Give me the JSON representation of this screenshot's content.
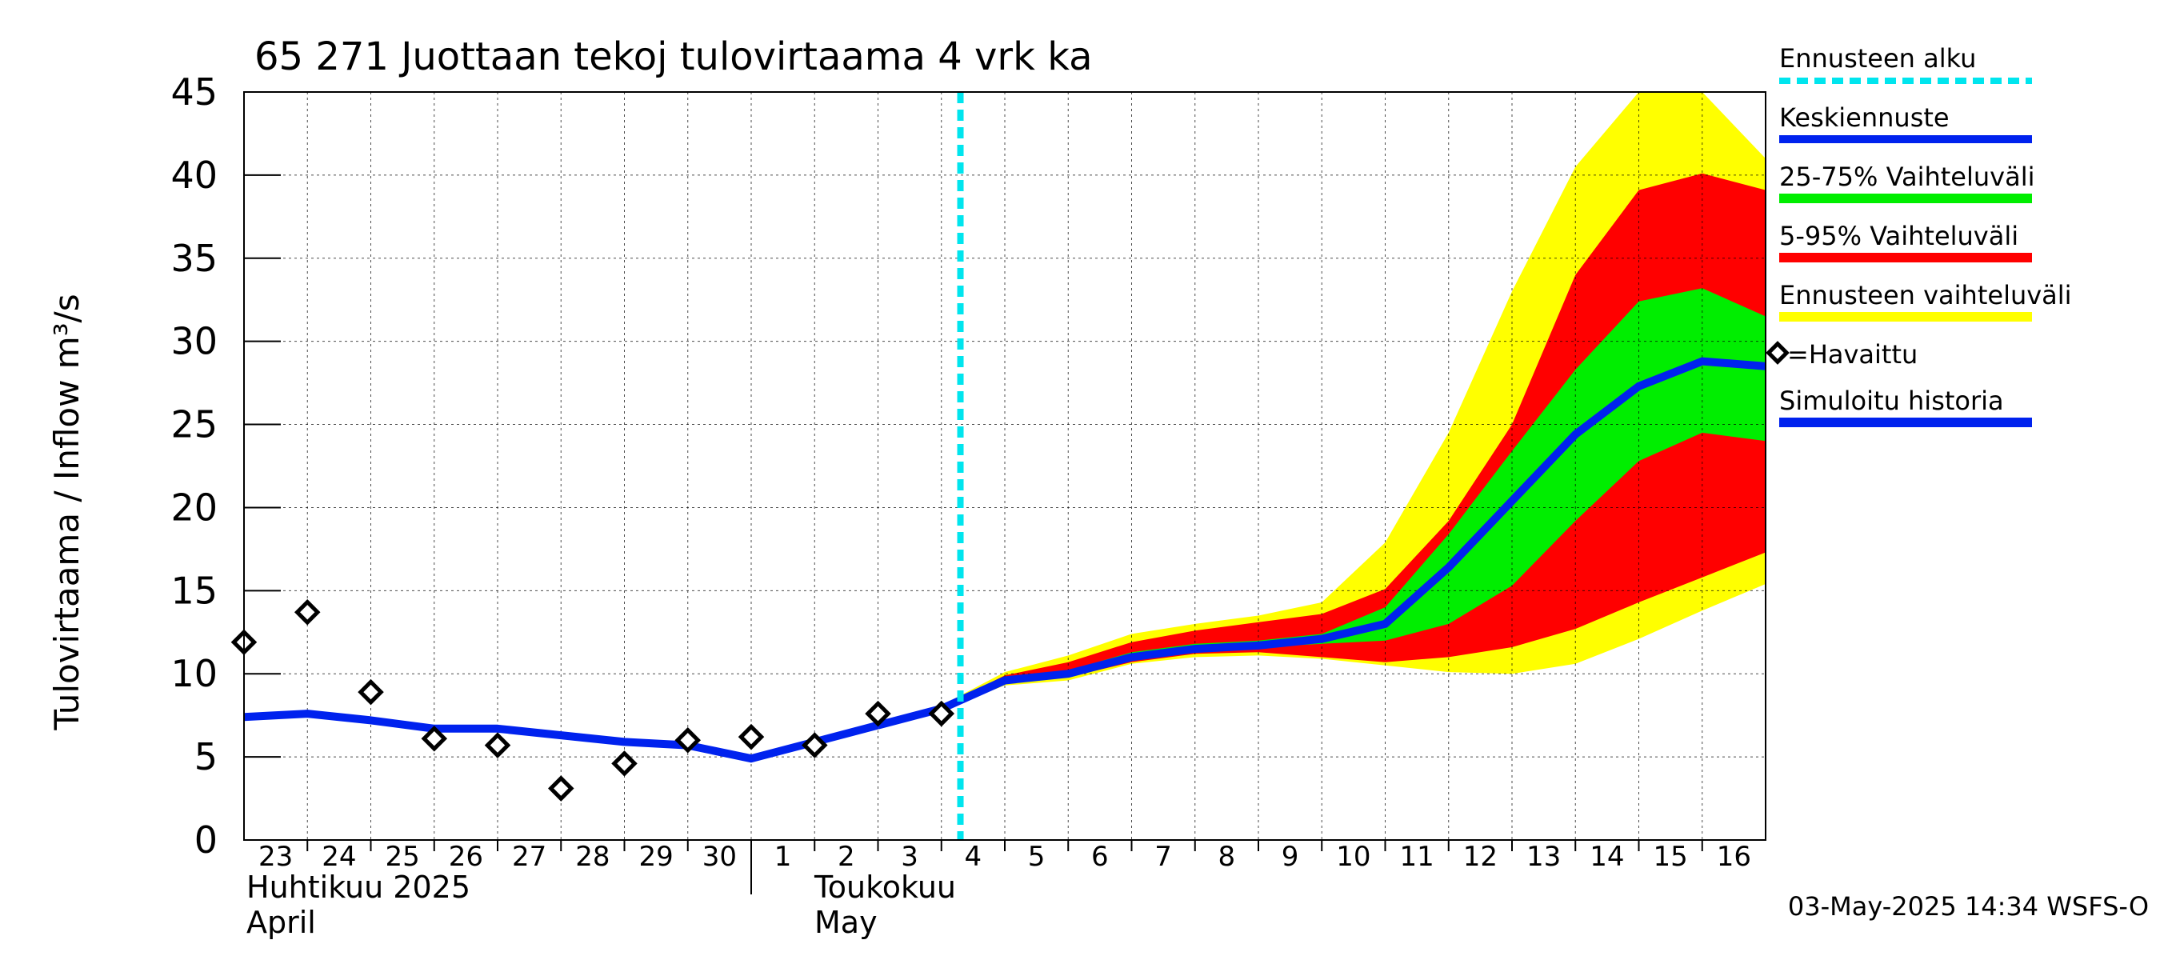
{
  "chart_data": {
    "type": "area",
    "title": "65 271 Juottaan tekoj tulovirtaama 4 vrk ka",
    "ylabel": "Tulovirtaama / Inflow    m³/s",
    "ylim": [
      0,
      45
    ],
    "y_ticks": [
      "0",
      "5",
      "10",
      "15",
      "20",
      "25",
      "30",
      "35",
      "40",
      "45"
    ],
    "grid": true,
    "days": [
      "23",
      "24",
      "25",
      "26",
      "27",
      "28",
      "29",
      "30",
      "1",
      "2",
      "3",
      "4",
      "5",
      "6",
      "7",
      "8",
      "9",
      "10",
      "11",
      "12",
      "13",
      "14",
      "15",
      "16"
    ],
    "month_labels": {
      "april_fi": "Huhtikuu  2025",
      "april_en": "April",
      "may_fi": "Toukokuu",
      "may_en": "May"
    },
    "forecast_start_day": 10.8,
    "x_range": [
      -0.5,
      23.5
    ],
    "legend": {
      "forecast_start": "Ennusteen alku",
      "median": "Keskiennuste",
      "band_25_75": "25-75% Vaihteluväli",
      "band_5_95": "5-95% Vaihteluväli",
      "band_full": "Ennusteen vaihteluväli",
      "observed": "=Havaittu",
      "simulated": "Simuloitu historia"
    },
    "observed": {
      "x": [
        -0.5,
        0.5,
        1.5,
        2.5,
        3.5,
        4.5,
        5.5,
        6.5,
        7.5,
        8.5,
        9.5,
        10.5
      ],
      "y": [
        11.9,
        13.7,
        8.9,
        6.1,
        5.7,
        3.1,
        4.6,
        6.0,
        6.2,
        5.7,
        7.6,
        7.6
      ]
    },
    "simulated_history": {
      "x": [
        -0.5,
        0.5,
        1.5,
        2.5,
        3.5,
        4.5,
        5.5,
        6.5,
        7.5,
        8.5,
        9.5
      ],
      "y": [
        7.4,
        7.6,
        7.2,
        6.7,
        6.7,
        6.3,
        5.9,
        5.7,
        4.9,
        5.9,
        6.9
      ]
    },
    "forecast": {
      "x": [
        9.5,
        10.5,
        11.5,
        12.5,
        13.5,
        14.5,
        15.5,
        16.5,
        17.5,
        18.5,
        19.5,
        20.5,
        21.5,
        22.5,
        23.5
      ],
      "median": [
        6.9,
        7.9,
        9.6,
        10.0,
        11.0,
        11.5,
        11.7,
        12.1,
        13.0,
        16.4,
        20.4,
        24.4,
        27.3,
        28.8,
        28.5
      ],
      "p25": [
        6.9,
        7.9,
        9.5,
        9.9,
        10.9,
        11.4,
        11.6,
        11.8,
        12.0,
        13.0,
        15.3,
        19.2,
        22.8,
        24.5,
        24.0
      ],
      "p75": [
        6.9,
        7.9,
        9.7,
        10.2,
        11.3,
        11.8,
        12.0,
        12.4,
        14.0,
        18.4,
        23.4,
        28.3,
        32.4,
        33.2,
        31.5
      ],
      "p05": [
        6.9,
        7.9,
        9.4,
        9.8,
        10.7,
        11.2,
        11.3,
        11.0,
        10.7,
        11.0,
        11.6,
        12.7,
        14.3,
        15.8,
        17.3
      ],
      "p95": [
        6.9,
        8.0,
        9.9,
        10.7,
        11.9,
        12.6,
        13.1,
        13.6,
        15.1,
        19.2,
        25.0,
        34.0,
        39.1,
        40.1,
        39.1
      ],
      "min": [
        6.9,
        7.8,
        9.3,
        9.6,
        10.6,
        11.0,
        11.1,
        10.9,
        10.5,
        10.1,
        10.0,
        10.6,
        12.1,
        13.8,
        15.4
      ],
      "max": [
        6.9,
        8.1,
        10.1,
        11.1,
        12.4,
        13.0,
        13.5,
        14.3,
        17.9,
        24.5,
        33.0,
        40.5,
        45.0,
        45.0,
        41.0
      ]
    },
    "colors": {
      "band_full": "#ffff00",
      "band_5_95": "#ff0000",
      "band_25_75": "#00ee00",
      "median": "#0022ee",
      "forecast_start": "#00e5ee",
      "grid": "#000000"
    },
    "timestamp": "03-May-2025 14:34 WSFS-O"
  }
}
